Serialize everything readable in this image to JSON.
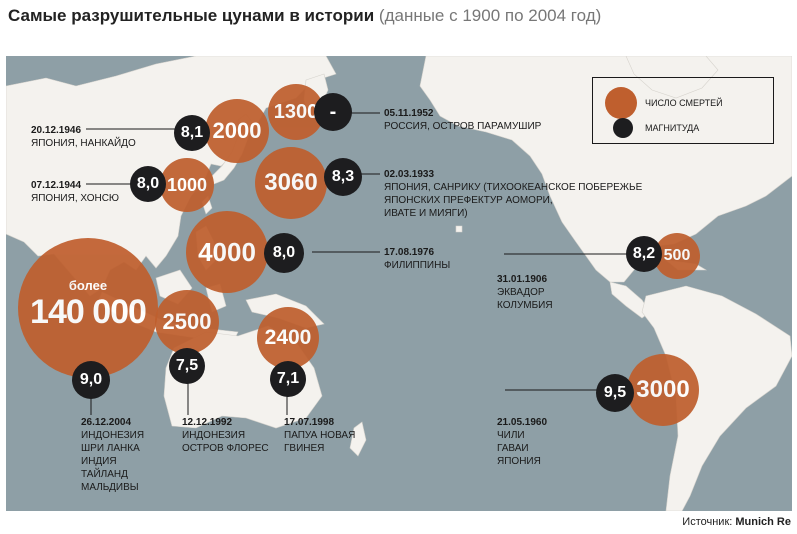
{
  "title": {
    "main": "Самые разрушительные цунами в истории",
    "sub": "(данные с 1900 по 2004 год)"
  },
  "legend": {
    "deaths": "ЧИСЛО СМЕРТЕЙ",
    "magnitude": "МАГНИТУДА"
  },
  "colors": {
    "deaths": "#bf5f2e",
    "magnitude": "#1d1d1f",
    "ocean": "#8e9fa6",
    "land": "#f4f2ee"
  },
  "events": [
    {
      "id": "1946",
      "date": "20.12.1946",
      "place": "ЯПОНИЯ, НАНКАЙДО",
      "deaths": "2000",
      "magnitude": "8,1"
    },
    {
      "id": "1952",
      "date": "05.11.1952",
      "place": "РОССИЯ, ОСТРОВ ПАРАМУШИР",
      "deaths": "1300",
      "magnitude": "-"
    },
    {
      "id": "1944",
      "date": "07.12.1944",
      "place": "ЯПОНИЯ, ХОНСЮ",
      "deaths": "1000",
      "magnitude": "8,0"
    },
    {
      "id": "1933",
      "date": "02.03.1933",
      "place": "ЯПОНИЯ, САНРИКУ (ТИХООКЕАНСКОЕ ПОБЕРЕЖЬЕ\nЯПОНСКИХ ПРЕФЕКТУР АОМОРИ,\nИВАТЕ И МИЯГИ)",
      "deaths": "3060",
      "magnitude": "8,3"
    },
    {
      "id": "1976",
      "date": "17.08.1976",
      "place": "ФИЛИППИНЫ",
      "deaths": "4000",
      "magnitude": "8,0"
    },
    {
      "id": "2004",
      "date": "26.12.2004",
      "place": "ИНДОНЕЗИЯ\nШРИ ЛАНКА\nИНДИЯ\nТАЙЛАНД\nМАЛЬДИВЫ",
      "deaths_prefix": "более",
      "deaths": "140 000",
      "magnitude": "9,0"
    },
    {
      "id": "1992",
      "date": "12.12.1992",
      "place": "ИНДОНЕЗИЯ\nОСТРОВ ФЛОРЕС",
      "deaths": "2500",
      "magnitude": "7,5"
    },
    {
      "id": "1998",
      "date": "17.07.1998",
      "place": "ПАПУА НОВАЯ\nГВИНЕЯ",
      "deaths": "2400",
      "magnitude": "7,1"
    },
    {
      "id": "1906",
      "date": "31.01.1906",
      "place": "ЭКВАДОР\nКОЛУМБИЯ",
      "deaths": "500",
      "magnitude": "8,2"
    },
    {
      "id": "1960",
      "date": "21.05.1960",
      "place": "ЧИЛИ\nГАВАИ\nЯПОНИЯ",
      "deaths": "3000",
      "magnitude": "9,5"
    }
  ],
  "source": {
    "label": "Источник:",
    "name": "Munich Re"
  }
}
